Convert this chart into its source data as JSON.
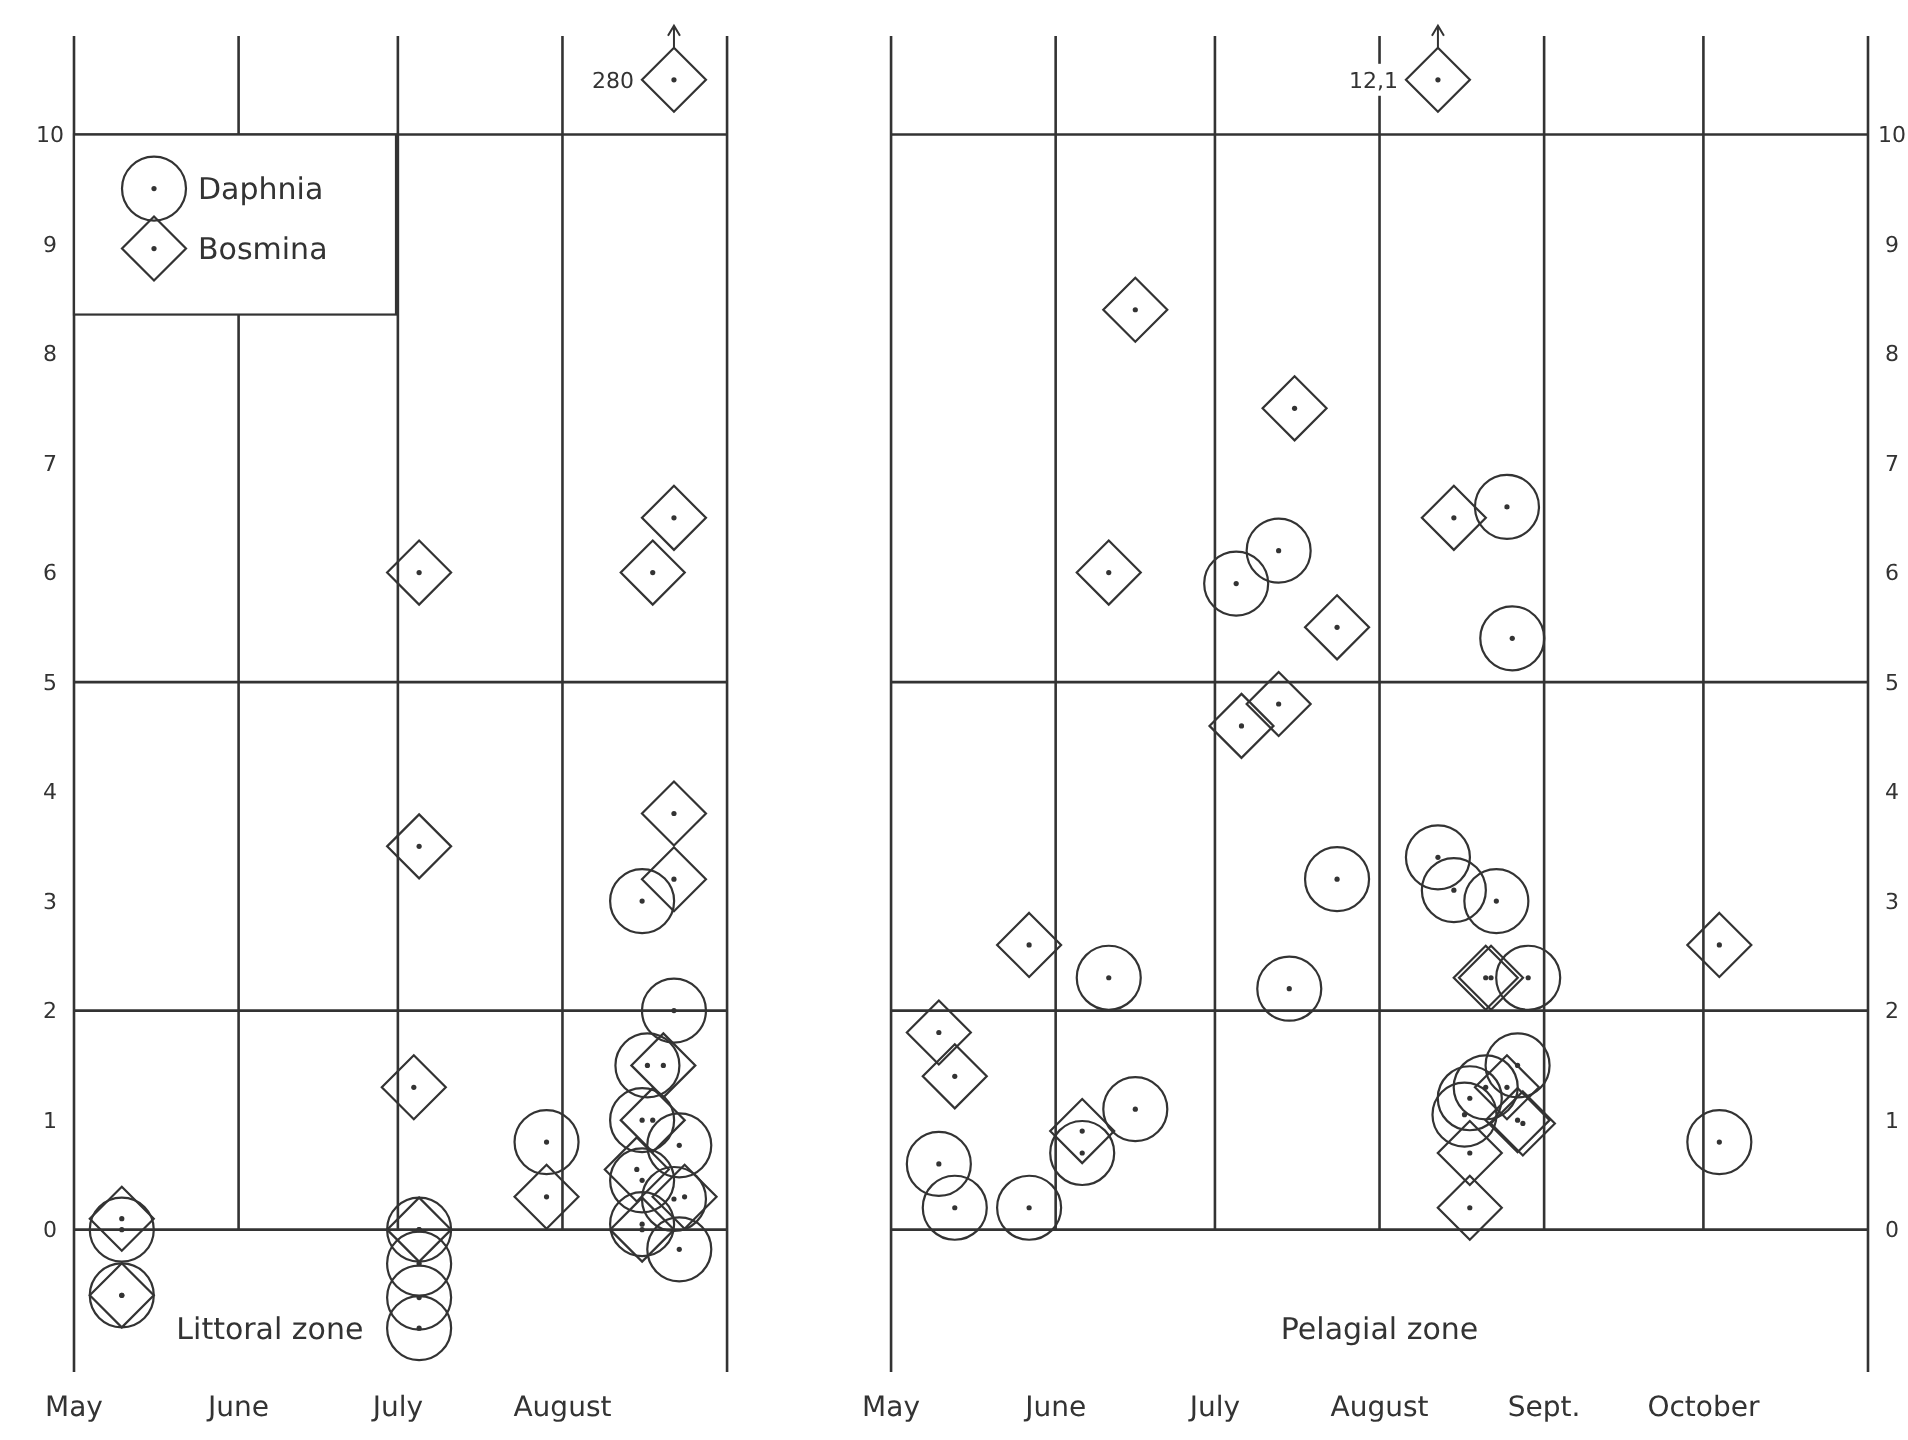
{
  "chart_data": [
    {
      "type": "scatter",
      "xlabel": "Littoral zone",
      "xlim": [
        "--05-01",
        "--09-01"
      ],
      "xticks": [
        {
          "value": "--05-01",
          "label": "May"
        },
        {
          "value": "--06-01",
          "label": "June"
        },
        {
          "value": "--07-01",
          "label": "July"
        },
        {
          "value": "--08-01",
          "label": "August"
        }
      ],
      "ylim": [
        -1.3,
        10.9
      ],
      "yticks": [
        0,
        1,
        2,
        3,
        4,
        5,
        6,
        7,
        8,
        9,
        10
      ],
      "legend": "top left",
      "ref_lines": [
        {
          "axis": "y",
          "value": 0
        },
        {
          "axis": "y",
          "value": 2
        },
        {
          "axis": "y",
          "value": 5
        },
        {
          "axis": "y",
          "value": 10
        },
        {
          "axis": "x",
          "value": "--06-01"
        },
        {
          "axis": "x",
          "value": "--07-01"
        },
        {
          "axis": "x",
          "value": "--08-01"
        }
      ],
      "annotations": [
        {
          "text": "280",
          "x": "--08-22",
          "y": 10.5
        }
      ],
      "series": [
        {
          "name": "Daphnia",
          "color": "#333333",
          "marker": "circle",
          "x": [
            "--05-10",
            "--05-10",
            "--07-05",
            "--07-05",
            "--07-05",
            "--07-05",
            "--07-29",
            "--08-16",
            "--08-22",
            "--08-17",
            "--08-16",
            "--08-23",
            "--08-16",
            "--08-22",
            "--08-16",
            "--08-23"
          ],
          "values": [
            0,
            -0.6,
            0,
            -0.31,
            -0.62,
            -0.9,
            0.8,
            3.0,
            2.0,
            1.5,
            1.0,
            0.77,
            0.45,
            0.28,
            0.05,
            -0.18
          ]
        },
        {
          "name": "Bosmina",
          "color": "#333333",
          "marker": "diamond",
          "x": [
            "--05-10",
            "--05-10",
            "--07-05",
            "--07-05",
            "--07-04",
            "--07-05",
            "--07-29",
            "--08-22",
            "--08-22",
            "--08-18",
            "--08-22",
            "--08-22",
            "--08-20",
            "--08-18",
            "--08-15",
            "--08-24",
            "--08-16"
          ],
          "values": [
            0.1,
            -0.6,
            6.0,
            3.5,
            1.3,
            0,
            0.3,
            10.5,
            6.5,
            6.0,
            3.8,
            3.2,
            1.5,
            1.0,
            0.55,
            0.3,
            0.0
          ]
        }
      ]
    },
    {
      "type": "scatter",
      "xlabel": "Pelagial zone",
      "xlim": [
        "--05-01",
        "--11-01"
      ],
      "xticks": [
        {
          "value": "--05-01",
          "label": "May"
        },
        {
          "value": "--06-01",
          "label": "June"
        },
        {
          "value": "--07-01",
          "label": "July"
        },
        {
          "value": "--08-01",
          "label": "August"
        },
        {
          "value": "--09-01",
          "label": "Sept."
        },
        {
          "value": "--10-01",
          "label": "October"
        }
      ],
      "ylim": [
        -1.3,
        10.9
      ],
      "yticks": [
        0,
        1,
        2,
        3,
        4,
        5,
        6,
        7,
        8,
        9,
        10
      ],
      "ref_lines": [
        {
          "axis": "y",
          "value": 0
        },
        {
          "axis": "y",
          "value": 2
        },
        {
          "axis": "y",
          "value": 5
        },
        {
          "axis": "y",
          "value": 10
        },
        {
          "axis": "x",
          "value": "--06-01"
        },
        {
          "axis": "x",
          "value": "--07-01"
        },
        {
          "axis": "x",
          "value": "--08-01"
        },
        {
          "axis": "x",
          "value": "--09-01"
        },
        {
          "axis": "x",
          "value": "--10-01"
        }
      ],
      "annotations": [
        {
          "text": "12,1",
          "x": "--08-12",
          "y": 10.5
        }
      ],
      "series": [
        {
          "color": "#333333",
          "marker": "circle",
          "x": [
            "--05-10",
            "--05-13",
            "--05-27",
            "--06-11",
            "--06-06",
            "--06-16",
            "--07-15",
            "--07-24",
            "--07-05",
            "--07-13",
            "--08-25",
            "--08-26",
            "--08-12",
            "--08-15",
            "--08-23",
            "--08-29",
            "--08-18",
            "--08-17",
            "--08-27",
            "--08-21",
            "--10-04"
          ],
          "values": [
            0.6,
            0.2,
            0.2,
            2.3,
            0.7,
            1.1,
            2.2,
            3.2,
            5.9,
            6.2,
            6.6,
            5.4,
            3.4,
            3.1,
            3.0,
            2.3,
            1.2,
            1.05,
            1.5,
            1.3,
            0.8
          ]
        },
        {
          "color": "#333333",
          "marker": "diamond",
          "x": [
            "--05-10",
            "--05-13",
            "--05-27",
            "--06-06",
            "--08-21",
            "--08-22",
            "--08-25",
            "--08-28",
            "--08-27",
            "--08-18",
            "--08-18",
            "--10-04",
            "--08-12",
            "--06-16",
            "--07-16",
            "--06-11",
            "--08-15",
            "--07-24",
            "--07-13",
            "--07-06"
          ],
          "values": [
            1.8,
            1.4,
            2.6,
            0.9,
            2.3,
            2.3,
            1.3,
            0.97,
            1.0,
            0.7,
            0.2,
            2.6,
            10.5,
            8.4,
            7.5,
            6.0,
            6.5,
            5.5,
            4.8,
            4.6
          ]
        }
      ]
    }
  ]
}
